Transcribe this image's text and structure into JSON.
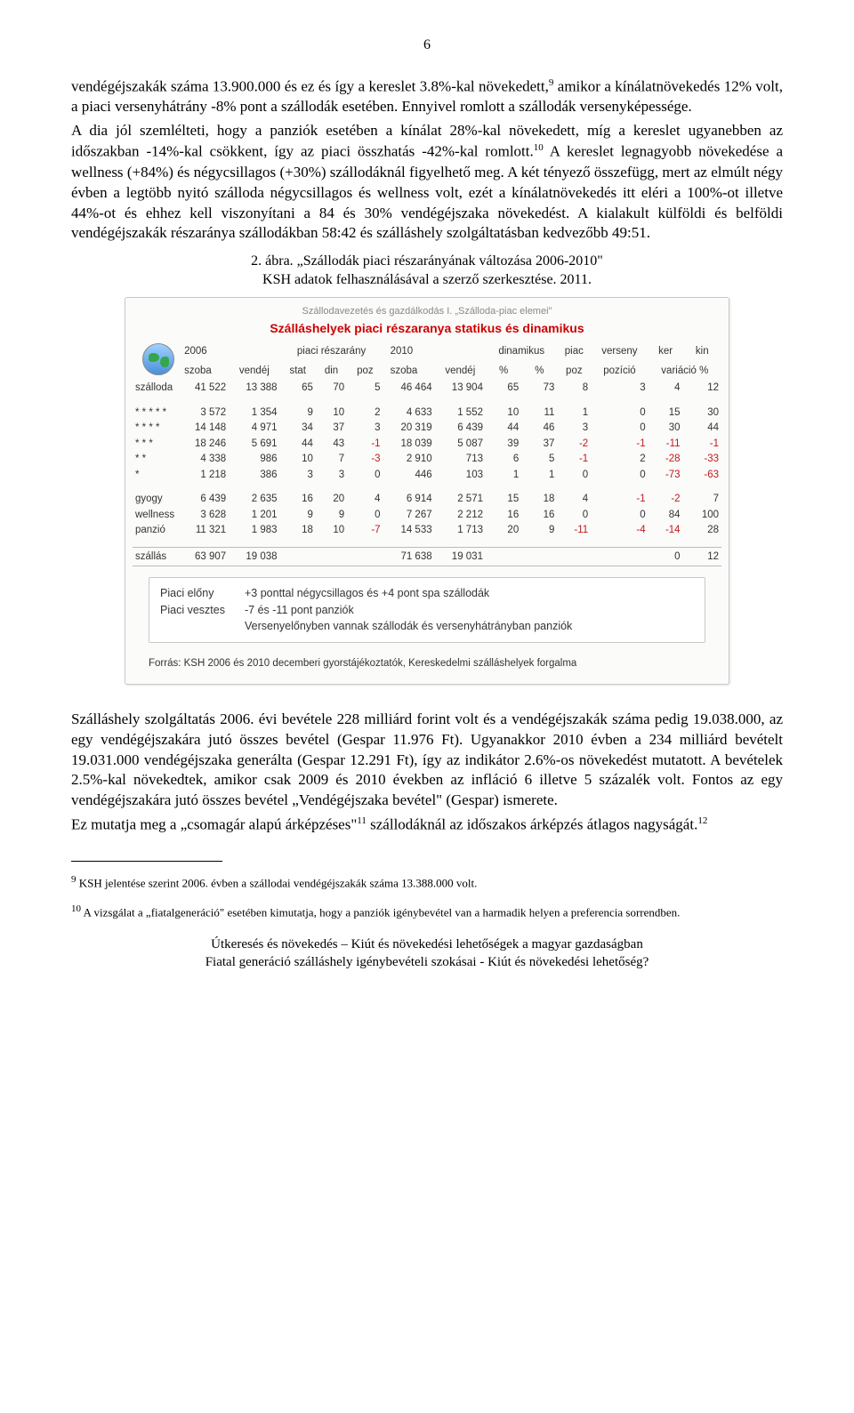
{
  "page_number": "6",
  "para1_a": "vendégéjszakák száma 13.900.000 és ez és így a kereslet 3.8%-kal növekedett,",
  "para1_sup": "9",
  "para1_b": " amikor a kínálatnövekedés 12% volt, a piaci versenyhátrány -8% pont a szállodák esetében. Ennyivel romlott a szállodák versenyképessége.",
  "para2_a": "A dia jól szemlélteti, hogy a panziók esetében a kínálat 28%-kal növekedett, míg a kereslet ugyanebben az időszakban -14%-kal csökkent, így az piaci összhatás -42%-kal romlott.",
  "para2_sup": "10",
  "para3": "A kereslet legnagyobb növekedése a wellness (+84%) és négycsillagos (+30%) szállodáknál figyelhető meg. A két tényező összefügg, mert az elmúlt négy évben a legtöbb nyitó szálloda négycsillagos és wellness volt, ezét a kínálatnövekedés itt eléri a 100%-ot illetve 44%-ot és ehhez kell viszonyítani a 84 és 30% vendégéjszaka növekedést.  A kialakult külföldi és belföldi vendégéjszakák részaránya szállodákban 58:42 és szálláshely szolgáltatásban kedvezőbb 49:51.",
  "fig_caption_a": "2. ábra. „Szállodák piaci részarányának változása 2006-2010\"",
  "fig_caption_b": "KSH adatok felhasználásával a szerző szerkesztése. 2011.",
  "card": {
    "toptitle": "Szállodavezetés és gazdálkodás I. „Szálloda-piac elemei\"",
    "redtitle": "Szálláshelyek piaci részaranya statikus és dinamikus",
    "head": {
      "g2006": "2006",
      "g_piaci": "piaci részarány",
      "g2010": "2010",
      "g_din": "dinamikus",
      "g_piac": "piac",
      "g_vers": "verseny",
      "g_ker": "ker",
      "g_kin": "kin",
      "szoba": "szoba",
      "vendej": "vendéj",
      "stat": "stat",
      "din": "din",
      "poz": "poz",
      "pct": "%",
      "poz2": "poz",
      "pozicio": "pozíció",
      "variacio": "variáció %"
    },
    "rows": [
      {
        "label": "szálloda",
        "c": [
          "41 522",
          "13 388",
          "65",
          "70",
          "5",
          "46 464",
          "13 904",
          "65",
          "73",
          "8",
          "3",
          "4",
          "12"
        ],
        "poz": [
          4,
          9,
          10
        ],
        "neg": []
      },
      {
        "label": "* * * * *",
        "c": [
          "3 572",
          "1 354",
          "9",
          "10",
          "2",
          "4 633",
          "1 552",
          "10",
          "11",
          "1",
          "0",
          "15",
          "30"
        ],
        "poz": [],
        "neg": []
      },
      {
        "label": "* * * *",
        "c": [
          "14 148",
          "4 971",
          "34",
          "37",
          "3",
          "20 319",
          "6 439",
          "44",
          "46",
          "3",
          "0",
          "30",
          "44"
        ],
        "poz": [
          4,
          9
        ],
        "neg": []
      },
      {
        "label": "* * *",
        "c": [
          "18 246",
          "5 691",
          "44",
          "43",
          "-1",
          "18 039",
          "5 087",
          "39",
          "37",
          "-2",
          "-1",
          "-11",
          "-1"
        ],
        "poz": [],
        "neg": [
          4,
          9,
          10,
          11,
          12
        ]
      },
      {
        "label": "* *",
        "c": [
          "4 338",
          "986",
          "10",
          "7",
          "-3",
          "2 910",
          "713",
          "6",
          "5",
          "-1",
          "2",
          "-28",
          "-33"
        ],
        "poz": [],
        "neg": [
          4,
          9,
          11,
          12
        ]
      },
      {
        "label": "*",
        "c": [
          "1 218",
          "386",
          "3",
          "3",
          "0",
          "446",
          "103",
          "1",
          "1",
          "0",
          "0",
          "-73",
          "-63"
        ],
        "poz": [],
        "neg": [
          11,
          12
        ]
      },
      {
        "label": "gyogy",
        "c": [
          "6 439",
          "2 635",
          "16",
          "20",
          "4",
          "6 914",
          "2 571",
          "15",
          "18",
          "4",
          "-1",
          "-2",
          "7"
        ],
        "poz": [
          4,
          9
        ],
        "neg": [
          10,
          11
        ]
      },
      {
        "label": "wellness",
        "c": [
          "3 628",
          "1 201",
          "9",
          "9",
          "0",
          "7 267",
          "2 212",
          "16",
          "16",
          "0",
          "0",
          "84",
          "100"
        ],
        "poz": [],
        "neg": []
      },
      {
        "label": "panzió",
        "c": [
          "11 321",
          "1 983",
          "18",
          "10",
          "-7",
          "14 533",
          "1 713",
          "20",
          "9",
          "-11",
          "-4",
          "-14",
          "28"
        ],
        "poz": [],
        "neg": [
          4,
          9,
          10,
          11
        ]
      },
      {
        "label": "szállás",
        "c": [
          "63 907",
          "19 038",
          "",
          "",
          "",
          "71 638",
          "19 031",
          "",
          "",
          "",
          "",
          "0",
          "12"
        ],
        "poz": [],
        "neg": []
      }
    ],
    "notes": {
      "l1_label": "Piaci előny",
      "l1_val": "+3 ponttal négycsillagos és +4 pont spa szállodák",
      "l2_label": "Piaci vesztes",
      "l2_val": "-7 és -11 pont panziók",
      "l3": "Versenyelőnyben vannak szállodák és versenyhátrányban panziók"
    },
    "source": "Forrás: KSH 2006 és 2010 decemberi gyorstájékoztatók, Kereskedelmi szálláshelyek forgalma"
  },
  "para4_a": "Szálláshely szolgáltatás 2006. évi bevétele 228 milliárd forint volt és a vendégéjszakák száma pedig 19.038.000, az egy vendégéjszakára jutó összes bevétel (Gespar 11.976 Ft). Ugyanakkor 2010 évben a 234 milliárd bevételt 19.031.000 vendégéjszaka generálta (Gespar 12.291 Ft), így az indikátor 2.6%-os növekedést mutatott.  A bevételek 2.5%-kal növekedtek, amikor csak 2009 és 2010 években az infláció 6 illetve 5 százalék volt. Fontos az egy vendégéjszakára jutó összes bevétel „Vendégéjszaka bevétel\" (Gespar) ismerete.",
  "para5_a": "Ez mutatja meg a „csomagár alapú árképzéses\"",
  "para5_sup": "11",
  "para5_b": " szállodáknál az időszakos árképzés átlagos nagyságát.",
  "para5_sup2": "12",
  "fn9_sup": "9",
  "fn9": " KSH jelentése szerint 2006. évben a szállodai vendégéjszakák száma 13.388.000 volt.",
  "fn10_sup": "10",
  "fn10": " A vizsgálat a „fiatalgeneráció\" esetében kimutatja, hogy a panziók igénybevétel van a harmadik helyen a preferencia sorrendben.",
  "footer1": "Útkeresés és növekedés – Kiút és növekedési lehetőségek a magyar gazdaságban",
  "footer2": "Fiatal generáció szálláshely igénybevételi szokásai - Kiút és növekedési lehetőség?"
}
